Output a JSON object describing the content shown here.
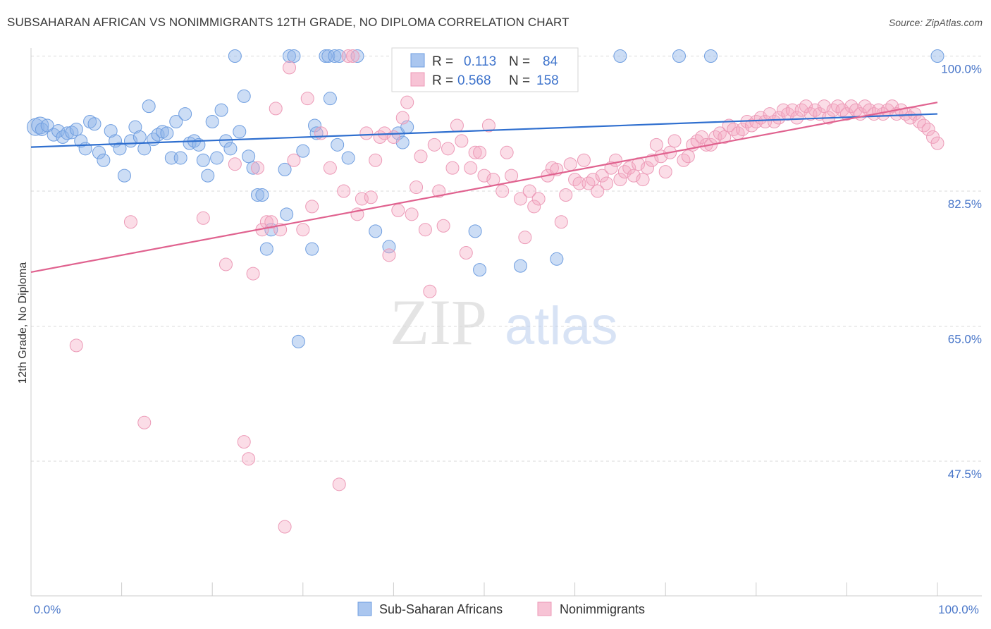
{
  "title": "SUBSAHARAN AFRICAN VS NONIMMIGRANTS 12TH GRADE, NO DIPLOMA CORRELATION CHART",
  "source": "Source: ZipAtlas.com",
  "watermark": {
    "zip": "ZIP",
    "atlas": "atlas"
  },
  "chart_data": {
    "type": "scatter",
    "ylabel": "12th Grade, No Diploma",
    "x_tick_labels": [
      "0.0%",
      "100.0%"
    ],
    "y_tick_labels": [
      "100.0%",
      "82.5%",
      "65.0%",
      "47.5%"
    ],
    "y_ticks": [
      100.0,
      82.5,
      65.0,
      47.5
    ],
    "xlim": [
      0,
      100
    ],
    "ylim": [
      33,
      102
    ],
    "grid": true,
    "legend_position": "top-center",
    "stats": [
      {
        "r_label": "R =",
        "r": "0.113",
        "n_label": "N =",
        "n": "84"
      },
      {
        "r_label": "R =",
        "r": "0.568",
        "n_label": "N =",
        "n": "158"
      }
    ],
    "series": [
      {
        "name": "Sub-Saharan Africans",
        "color": "#8fb4e8",
        "line_color": "#2f6fcf",
        "trend": [
          [
            0,
            88.2
          ],
          [
            100,
            92.5
          ]
        ],
        "points": [
          [
            0.5,
            90.8
          ],
          [
            1,
            91
          ],
          [
            1.2,
            90.5
          ],
          [
            1.8,
            91
          ],
          [
            2.5,
            89.8
          ],
          [
            3,
            90.3
          ],
          [
            3.5,
            89.5
          ],
          [
            4,
            90
          ],
          [
            4.5,
            90.1
          ],
          [
            5,
            90.5
          ],
          [
            5.5,
            89
          ],
          [
            6,
            88
          ],
          [
            6.5,
            91.5
          ],
          [
            7,
            91.2
          ],
          [
            7.5,
            87.5
          ],
          [
            8,
            86.5
          ],
          [
            8.8,
            90.3
          ],
          [
            9.3,
            89
          ],
          [
            9.8,
            88
          ],
          [
            10.3,
            84.5
          ],
          [
            11,
            89
          ],
          [
            11.5,
            90.8
          ],
          [
            12,
            89.5
          ],
          [
            12.5,
            88
          ],
          [
            13,
            93.5
          ],
          [
            13.5,
            89.2
          ],
          [
            14,
            89.8
          ],
          [
            14.5,
            90.2
          ],
          [
            15,
            90
          ],
          [
            15.5,
            86.8
          ],
          [
            16,
            91.5
          ],
          [
            16.5,
            86.8
          ],
          [
            17,
            92.5
          ],
          [
            17.5,
            88.7
          ],
          [
            18,
            89
          ],
          [
            18.5,
            88.5
          ],
          [
            19,
            86.5
          ],
          [
            19.5,
            84.5
          ],
          [
            20,
            91.5
          ],
          [
            20.5,
            86.8
          ],
          [
            21,
            93
          ],
          [
            21.5,
            89
          ],
          [
            22,
            88
          ],
          [
            22.5,
            100
          ],
          [
            23,
            90.2
          ],
          [
            23.5,
            94.8
          ],
          [
            24,
            87
          ],
          [
            24.5,
            85.5
          ],
          [
            25,
            82
          ],
          [
            25.5,
            82
          ],
          [
            26,
            75
          ],
          [
            26.5,
            77.5
          ],
          [
            28,
            85.3
          ],
          [
            28.2,
            79.5
          ],
          [
            28.5,
            100
          ],
          [
            29,
            100
          ],
          [
            29.5,
            63
          ],
          [
            30,
            87.7
          ],
          [
            31,
            75
          ],
          [
            31.3,
            91
          ],
          [
            31.5,
            90
          ],
          [
            32.5,
            100
          ],
          [
            32.8,
            100
          ],
          [
            33,
            94.5
          ],
          [
            33.5,
            100
          ],
          [
            33.8,
            88.5
          ],
          [
            34,
            100
          ],
          [
            35,
            86.8
          ],
          [
            36,
            100
          ],
          [
            38,
            77.3
          ],
          [
            39.5,
            75.3
          ],
          [
            40.5,
            90
          ],
          [
            41,
            88.8
          ],
          [
            41.5,
            90.8
          ],
          [
            49,
            77.3
          ],
          [
            49.5,
            72.3
          ],
          [
            52.5,
            100
          ],
          [
            54,
            72.8
          ],
          [
            58,
            73.7
          ],
          [
            65,
            100
          ],
          [
            71.5,
            100
          ],
          [
            75,
            100
          ],
          [
            100,
            100
          ]
        ]
      },
      {
        "name": "Nonimmigrants",
        "color": "#f4a9c2",
        "line_color": "#e0628f",
        "trend": [
          [
            0,
            72
          ],
          [
            100,
            94
          ]
        ],
        "points": [
          [
            5,
            62.5
          ],
          [
            11,
            78.5
          ],
          [
            12.5,
            52.5
          ],
          [
            19,
            79
          ],
          [
            21.5,
            73
          ],
          [
            22.5,
            86
          ],
          [
            23.5,
            50
          ],
          [
            24,
            47.8
          ],
          [
            24.5,
            71.8
          ],
          [
            25,
            85.5
          ],
          [
            25.5,
            77.5
          ],
          [
            26,
            78.5
          ],
          [
            26.5,
            78.5
          ],
          [
            27,
            93.2
          ],
          [
            27.5,
            77.5
          ],
          [
            28,
            39
          ],
          [
            28.5,
            98.5
          ],
          [
            29,
            86.5
          ],
          [
            30,
            77.5
          ],
          [
            30.5,
            94.5
          ],
          [
            31,
            80.5
          ],
          [
            32,
            90
          ],
          [
            33,
            85.5
          ],
          [
            34,
            44.5
          ],
          [
            34.5,
            82.5
          ],
          [
            35,
            100
          ],
          [
            35.5,
            100
          ],
          [
            36,
            79.5
          ],
          [
            36.5,
            81.5
          ],
          [
            37,
            90
          ],
          [
            37.5,
            81.7
          ],
          [
            38,
            86.5
          ],
          [
            38.5,
            89.5
          ],
          [
            39,
            90
          ],
          [
            39.5,
            74.2
          ],
          [
            40,
            89.5
          ],
          [
            40.5,
            80
          ],
          [
            41,
            92
          ],
          [
            41.5,
            94
          ],
          [
            42,
            79.5
          ],
          [
            42.5,
            83
          ],
          [
            43,
            87
          ],
          [
            43.5,
            77.5
          ],
          [
            44,
            69.5
          ],
          [
            44.5,
            88.5
          ],
          [
            45,
            82.5
          ],
          [
            45.5,
            78
          ],
          [
            46,
            88
          ],
          [
            46.5,
            85.5
          ],
          [
            47,
            91
          ],
          [
            47.5,
            89
          ],
          [
            48,
            74.5
          ],
          [
            48.5,
            85.5
          ],
          [
            49,
            87.5
          ],
          [
            49.5,
            87.5
          ],
          [
            50,
            84.5
          ],
          [
            50.5,
            91
          ],
          [
            51,
            84
          ],
          [
            52,
            82.5
          ],
          [
            52.5,
            87.5
          ],
          [
            53,
            84.5
          ],
          [
            54,
            81.5
          ],
          [
            54.5,
            76.5
          ],
          [
            55,
            82.5
          ],
          [
            55.5,
            80.5
          ],
          [
            56,
            81.5
          ],
          [
            57,
            84.5
          ],
          [
            57.5,
            85.5
          ],
          [
            58,
            85.3
          ],
          [
            58.5,
            78.5
          ],
          [
            59,
            82
          ],
          [
            59.5,
            86
          ],
          [
            60,
            84
          ],
          [
            60.5,
            83.5
          ],
          [
            61,
            86.5
          ],
          [
            61.5,
            83.5
          ],
          [
            62,
            84
          ],
          [
            62.5,
            82.5
          ],
          [
            63,
            84.5
          ],
          [
            63.5,
            83.5
          ],
          [
            64,
            85.5
          ],
          [
            64.5,
            86.5
          ],
          [
            65,
            84
          ],
          [
            65.5,
            85
          ],
          [
            66,
            85.5
          ],
          [
            66.5,
            84.5
          ],
          [
            67,
            86
          ],
          [
            67.5,
            84
          ],
          [
            68,
            85.5
          ],
          [
            68.5,
            86.5
          ],
          [
            69,
            88.5
          ],
          [
            69.5,
            87
          ],
          [
            70,
            85
          ],
          [
            70.5,
            87.5
          ],
          [
            71,
            89
          ],
          [
            72,
            86.5
          ],
          [
            72.5,
            87
          ],
          [
            73,
            88.5
          ],
          [
            73.5,
            89
          ],
          [
            74,
            89.5
          ],
          [
            74.5,
            88.5
          ],
          [
            75,
            88.5
          ],
          [
            75.5,
            89.5
          ],
          [
            76,
            90
          ],
          [
            76.5,
            89.5
          ],
          [
            77,
            91
          ],
          [
            77.5,
            90.5
          ],
          [
            78,
            90
          ],
          [
            78.5,
            90.5
          ],
          [
            79,
            91.5
          ],
          [
            79.5,
            91
          ],
          [
            80,
            91.5
          ],
          [
            80.5,
            92
          ],
          [
            81,
            91.5
          ],
          [
            81.5,
            92.5
          ],
          [
            82,
            91.5
          ],
          [
            82.5,
            92
          ],
          [
            83,
            93
          ],
          [
            83.5,
            92.5
          ],
          [
            84,
            93
          ],
          [
            84.5,
            92
          ],
          [
            85,
            93
          ],
          [
            85.5,
            93.5
          ],
          [
            86,
            92.5
          ],
          [
            86.5,
            93
          ],
          [
            87,
            92.5
          ],
          [
            87.5,
            93.5
          ],
          [
            88,
            92
          ],
          [
            88.5,
            93
          ],
          [
            89,
            93.5
          ],
          [
            89.5,
            93
          ],
          [
            90,
            92.5
          ],
          [
            90.5,
            93.5
          ],
          [
            91,
            93
          ],
          [
            91.5,
            92.5
          ],
          [
            92,
            93.5
          ],
          [
            92.5,
            93
          ],
          [
            93,
            92.5
          ],
          [
            93.5,
            93
          ],
          [
            94,
            92.5
          ],
          [
            94.5,
            93
          ],
          [
            95,
            93.5
          ],
          [
            95.5,
            92.5
          ],
          [
            96,
            93
          ],
          [
            96.5,
            92.5
          ],
          [
            97,
            92
          ],
          [
            97.5,
            92.5
          ],
          [
            98,
            91.5
          ],
          [
            98.5,
            91
          ],
          [
            99,
            90.5
          ],
          [
            99.5,
            89.5
          ],
          [
            100,
            88.7
          ]
        ]
      }
    ]
  }
}
